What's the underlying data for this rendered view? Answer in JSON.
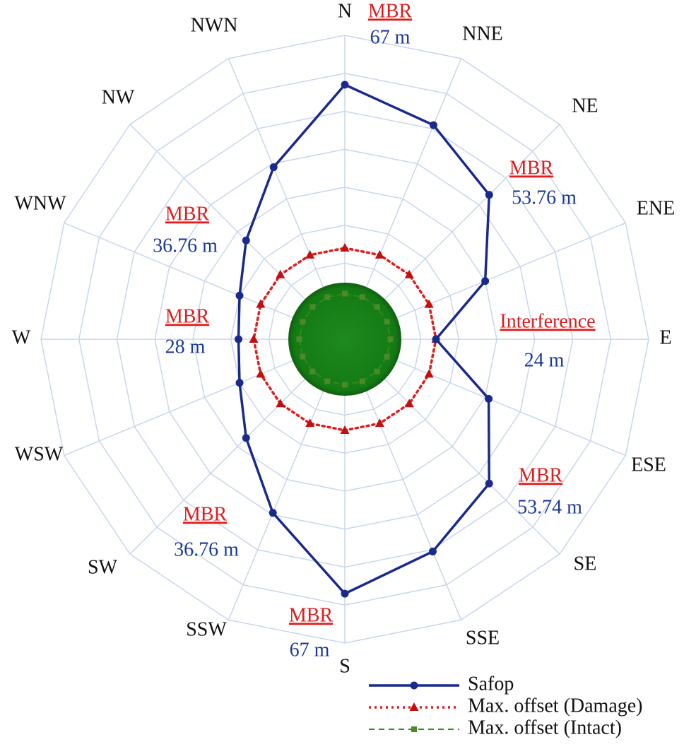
{
  "chart_data": {
    "type": "radar",
    "categories": [
      "N",
      "NNE",
      "NE",
      "ENE",
      "E",
      "ESE",
      "SE",
      "SSE",
      "S",
      "SSW",
      "SW",
      "WSW",
      "W",
      "WNW",
      "NW",
      "NWN"
    ],
    "ylim": [
      0,
      80
    ],
    "yticks": [
      10,
      20,
      30,
      40,
      50,
      60,
      70,
      80
    ],
    "grid": true,
    "series": [
      {
        "name": "Safop",
        "color": "#1a2a8c",
        "values": [
          67,
          61,
          53.76,
          40,
          24,
          41,
          53.74,
          60.5,
          67,
          49.5,
          36.76,
          30,
          28,
          30,
          36.76,
          49
        ]
      },
      {
        "name": "Max. offset (Damage)",
        "color": "#e31b1b",
        "values": [
          24,
          24,
          24,
          24,
          24,
          24,
          24,
          24,
          24,
          24,
          24,
          24,
          24,
          24,
          24,
          24
        ]
      },
      {
        "name": "Max. offset (Intact)",
        "color": "#2e8b1e",
        "values": [
          12,
          12,
          12,
          12,
          12,
          12,
          12,
          12,
          12,
          12,
          12,
          12,
          12,
          12,
          12,
          12
        ]
      }
    ],
    "annotations": [
      {
        "label": "MBR",
        "text": "67 m"
      },
      {
        "label": "MBR",
        "text": "53.76 m"
      },
      {
        "label": "Interference",
        "text": "24 m"
      },
      {
        "label": "MBR",
        "text": "53.74 m"
      },
      {
        "label": "MBR",
        "text": "67 m"
      },
      {
        "label": "MBR",
        "text": "36.76 m"
      },
      {
        "label": "MBR",
        "text": "28 m"
      },
      {
        "label": "MBR",
        "text": "36.76 m"
      }
    ]
  }
}
